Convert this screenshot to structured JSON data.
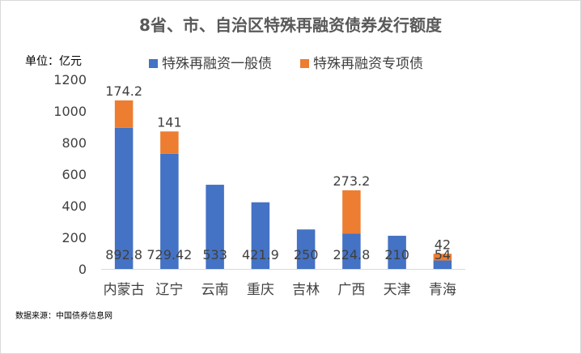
{
  "chart_data": {
    "type": "bar",
    "stacked": true,
    "title": "8省、市、自治区特殊再融资债券发行额度",
    "unit_label": "单位：亿元",
    "source_note": "数据来源：中国债券信息网",
    "categories": [
      "内蒙古",
      "辽宁",
      "云南",
      "重庆",
      "吉林",
      "广西",
      "天津",
      "青海"
    ],
    "series": [
      {
        "name": "特殊再融资一般债",
        "color": "#4472C4",
        "values": [
          892.8,
          729.42,
          533,
          421.9,
          250,
          224.8,
          210,
          54
        ],
        "labels": [
          "892.8",
          "729.42",
          "533",
          "421.9",
          "250",
          "224.8",
          "210",
          "54"
        ]
      },
      {
        "name": "特殊再融资专项债",
        "color": "#ED7D31",
        "values": [
          174.2,
          141,
          null,
          null,
          null,
          273.2,
          null,
          42
        ],
        "labels": [
          "174.2",
          "141",
          "",
          "",
          "",
          "273.2",
          "",
          "42"
        ]
      }
    ],
    "ylim": [
      0,
      1200
    ],
    "yticks": [
      0,
      200,
      400,
      600,
      800,
      1000,
      1200
    ],
    "grid": false,
    "legend_position": "top"
  }
}
